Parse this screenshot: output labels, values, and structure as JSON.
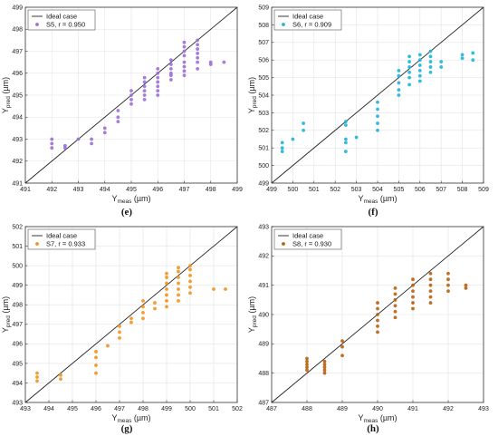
{
  "chart_data": [
    {
      "type": "scatter",
      "panel_label": "(e)",
      "xlabel": {
        "main": "Y",
        "sub": "meas",
        "unit": " (µm)"
      },
      "ylabel": {
        "main": "Y",
        "sub": "pred",
        "unit": " (µm)"
      },
      "xlim": [
        491,
        499
      ],
      "ylim": [
        491,
        499
      ],
      "xticks": [
        491,
        492,
        493,
        494,
        495,
        496,
        497,
        498,
        499
      ],
      "yticks": [
        491,
        492,
        493,
        494,
        495,
        496,
        497,
        498,
        499
      ],
      "grid": true,
      "legend_position": "top-left",
      "ideal_label": "Ideal case",
      "series_label": "S5, r = 0.950",
      "color": "#9b6fd6",
      "points": [
        [
          492,
          492.6
        ],
        [
          492,
          492.8
        ],
        [
          492,
          493.0
        ],
        [
          492.5,
          492.6
        ],
        [
          492.5,
          492.7
        ],
        [
          493,
          493.0
        ],
        [
          493.5,
          492.8
        ],
        [
          493.5,
          493.0
        ],
        [
          494,
          493.3
        ],
        [
          494,
          493.5
        ],
        [
          494.5,
          493.8
        ],
        [
          494.5,
          494.0
        ],
        [
          494.5,
          494.3
        ],
        [
          495,
          494.6
        ],
        [
          495,
          494.8
        ],
        [
          495,
          495.0
        ],
        [
          495,
          495.2
        ],
        [
          495.5,
          494.8
        ],
        [
          495.5,
          495.0
        ],
        [
          495.5,
          495.2
        ],
        [
          495.5,
          495.4
        ],
        [
          495.5,
          495.6
        ],
        [
          495.5,
          495.8
        ],
        [
          496,
          495.0
        ],
        [
          496,
          495.2
        ],
        [
          496,
          495.4
        ],
        [
          496,
          495.6
        ],
        [
          496,
          495.8
        ],
        [
          496,
          496.0
        ],
        [
          496,
          496.2
        ],
        [
          496.5,
          495.7
        ],
        [
          496.5,
          495.9
        ],
        [
          496.5,
          496.0
        ],
        [
          496.5,
          496.2
        ],
        [
          496.5,
          496.4
        ],
        [
          496.5,
          496.6
        ],
        [
          497,
          495.9
        ],
        [
          497,
          496.1
        ],
        [
          497,
          496.3
        ],
        [
          497,
          496.5
        ],
        [
          497,
          496.8
        ],
        [
          497,
          497.0
        ],
        [
          497,
          497.2
        ],
        [
          497,
          497.4
        ],
        [
          497.5,
          496.2
        ],
        [
          497.5,
          496.5
        ],
        [
          497.5,
          496.7
        ],
        [
          497.5,
          496.9
        ],
        [
          497.5,
          497.1
        ],
        [
          497.5,
          497.3
        ],
        [
          497.5,
          497.5
        ],
        [
          498,
          496.4
        ],
        [
          498,
          496.5
        ],
        [
          498.5,
          496.5
        ]
      ]
    },
    {
      "type": "scatter",
      "panel_label": "(f)",
      "xlabel": {
        "main": "Y",
        "sub": "meas",
        "unit": " (µm)"
      },
      "ylabel": {
        "main": "Y",
        "sub": "pred",
        "unit": " (µm)"
      },
      "xlim": [
        499,
        509
      ],
      "ylim": [
        499,
        509
      ],
      "xticks": [
        499,
        500,
        501,
        502,
        503,
        504,
        505,
        506,
        507,
        508,
        509
      ],
      "yticks": [
        499,
        500,
        501,
        502,
        503,
        504,
        505,
        506,
        507,
        508,
        509
      ],
      "grid": true,
      "legend_position": "top-left",
      "ideal_label": "Ideal case",
      "series_label": "S6, r = 0.909",
      "color": "#1fb5d6",
      "points": [
        [
          499.5,
          500.8
        ],
        [
          499.5,
          501.0
        ],
        [
          499.5,
          501.3
        ],
        [
          500,
          501.5
        ],
        [
          500.5,
          502.0
        ],
        [
          500.5,
          502.4
        ],
        [
          502.5,
          500.8
        ],
        [
          502.5,
          501.3
        ],
        [
          502.5,
          501.5
        ],
        [
          502.5,
          502.3
        ],
        [
          502.5,
          502.5
        ],
        [
          503,
          501.6
        ],
        [
          504,
          502.0
        ],
        [
          504,
          502.4
        ],
        [
          504,
          502.8
        ],
        [
          504,
          503.2
        ],
        [
          504,
          503.6
        ],
        [
          505,
          504.0
        ],
        [
          505,
          504.3
        ],
        [
          505,
          504.7
        ],
        [
          505,
          505.1
        ],
        [
          505,
          505.4
        ],
        [
          505.5,
          504.6
        ],
        [
          505.5,
          505.0
        ],
        [
          505.5,
          505.3
        ],
        [
          505.5,
          505.6
        ],
        [
          505.5,
          505.9
        ],
        [
          505.5,
          506.2
        ],
        [
          506,
          504.8
        ],
        [
          506,
          505.1
        ],
        [
          506,
          505.4
        ],
        [
          506,
          505.7
        ],
        [
          506,
          506.0
        ],
        [
          506,
          506.3
        ],
        [
          506.5,
          505.3
        ],
        [
          506.5,
          505.6
        ],
        [
          506.5,
          505.9
        ],
        [
          506.5,
          506.2
        ],
        [
          506.5,
          506.5
        ],
        [
          507,
          505.6
        ],
        [
          507,
          505.9
        ],
        [
          508,
          506.1
        ],
        [
          508,
          506.3
        ],
        [
          508.5,
          506.0
        ],
        [
          508.5,
          506.4
        ]
      ]
    },
    {
      "type": "scatter",
      "panel_label": "(g)",
      "xlabel": {
        "main": "Y",
        "sub": "meas",
        "unit": " (µm)"
      },
      "ylabel": {
        "main": "Y",
        "sub": "pred",
        "unit": " (µm)"
      },
      "xlim": [
        493,
        502
      ],
      "ylim": [
        493,
        502
      ],
      "xticks": [
        493,
        494,
        495,
        496,
        497,
        498,
        499,
        500,
        501,
        502
      ],
      "yticks": [
        493,
        494,
        495,
        496,
        497,
        498,
        499,
        500,
        501,
        502
      ],
      "grid": true,
      "legend_position": "top-left",
      "ideal_label": "Ideal case",
      "series_label": "S7, r = 0.933",
      "color": "#f2921f",
      "points": [
        [
          493.5,
          494.1
        ],
        [
          493.5,
          494.3
        ],
        [
          493.5,
          494.5
        ],
        [
          494.5,
          494.2
        ],
        [
          494.5,
          494.4
        ],
        [
          496,
          494.5
        ],
        [
          496,
          494.9
        ],
        [
          496,
          495.3
        ],
        [
          496,
          495.6
        ],
        [
          496.5,
          495.9
        ],
        [
          497,
          496.3
        ],
        [
          497,
          496.6
        ],
        [
          497,
          496.9
        ],
        [
          497.5,
          497.1
        ],
        [
          497.5,
          497.3
        ],
        [
          498,
          497.3
        ],
        [
          498,
          497.6
        ],
        [
          498,
          497.9
        ],
        [
          498,
          498.2
        ],
        [
          498.5,
          497.8
        ],
        [
          498.5,
          498.1
        ],
        [
          499,
          497.9
        ],
        [
          499,
          498.2
        ],
        [
          499,
          498.5
        ],
        [
          499,
          498.8
        ],
        [
          499,
          499.1
        ],
        [
          499,
          499.4
        ],
        [
          499,
          499.6
        ],
        [
          499.5,
          498.2
        ],
        [
          499.5,
          498.5
        ],
        [
          499.5,
          498.8
        ],
        [
          499.5,
          499.1
        ],
        [
          499.5,
          499.4
        ],
        [
          499.5,
          499.7
        ],
        [
          499.5,
          499.9
        ],
        [
          500,
          498.6
        ],
        [
          500,
          498.9
        ],
        [
          500,
          499.2
        ],
        [
          500,
          499.5
        ],
        [
          500,
          499.8
        ],
        [
          500,
          500.0
        ],
        [
          501,
          498.8
        ],
        [
          501.5,
          498.8
        ]
      ]
    },
    {
      "type": "scatter",
      "panel_label": "(h)",
      "xlabel": {
        "main": "Y",
        "sub": "meas",
        "unit": " (µm)"
      },
      "ylabel": {
        "main": "Y",
        "sub": "pred",
        "unit": " (µm)"
      },
      "xlim": [
        487,
        493
      ],
      "ylim": [
        487,
        493
      ],
      "xticks": [
        487,
        488,
        489,
        490,
        491,
        492,
        493
      ],
      "yticks": [
        487,
        488,
        489,
        490,
        491,
        492,
        493
      ],
      "grid": true,
      "legend_position": "top-left",
      "ideal_label": "Ideal case",
      "series_label": "S8, r = 0.930",
      "color": "#b8600e",
      "points": [
        [
          488,
          488.1
        ],
        [
          488,
          488.2
        ],
        [
          488,
          488.3
        ],
        [
          488,
          488.4
        ],
        [
          488,
          488.5
        ],
        [
          488.5,
          488.0
        ],
        [
          488.5,
          488.1
        ],
        [
          488.5,
          488.2
        ],
        [
          488.5,
          488.3
        ],
        [
          488.5,
          488.4
        ],
        [
          489,
          488.6
        ],
        [
          489,
          488.9
        ],
        [
          489,
          489.1
        ],
        [
          490,
          489.4
        ],
        [
          490,
          489.6
        ],
        [
          490,
          489.8
        ],
        [
          490,
          490.0
        ],
        [
          490,
          490.2
        ],
        [
          490,
          490.4
        ],
        [
          490.5,
          489.9
        ],
        [
          490.5,
          490.1
        ],
        [
          490.5,
          490.3
        ],
        [
          490.5,
          490.5
        ],
        [
          490.5,
          490.7
        ],
        [
          490.5,
          490.9
        ],
        [
          491,
          490.2
        ],
        [
          491,
          490.4
        ],
        [
          491,
          490.6
        ],
        [
          491,
          490.8
        ],
        [
          491,
          491.0
        ],
        [
          491,
          491.2
        ],
        [
          491.5,
          490.4
        ],
        [
          491.5,
          490.6
        ],
        [
          491.5,
          490.8
        ],
        [
          491.5,
          491.0
        ],
        [
          491.5,
          491.2
        ],
        [
          491.5,
          491.4
        ],
        [
          492,
          490.8
        ],
        [
          492,
          491.0
        ],
        [
          492,
          491.2
        ],
        [
          492,
          491.4
        ],
        [
          492.5,
          490.9
        ],
        [
          492.5,
          491.0
        ]
      ]
    }
  ]
}
